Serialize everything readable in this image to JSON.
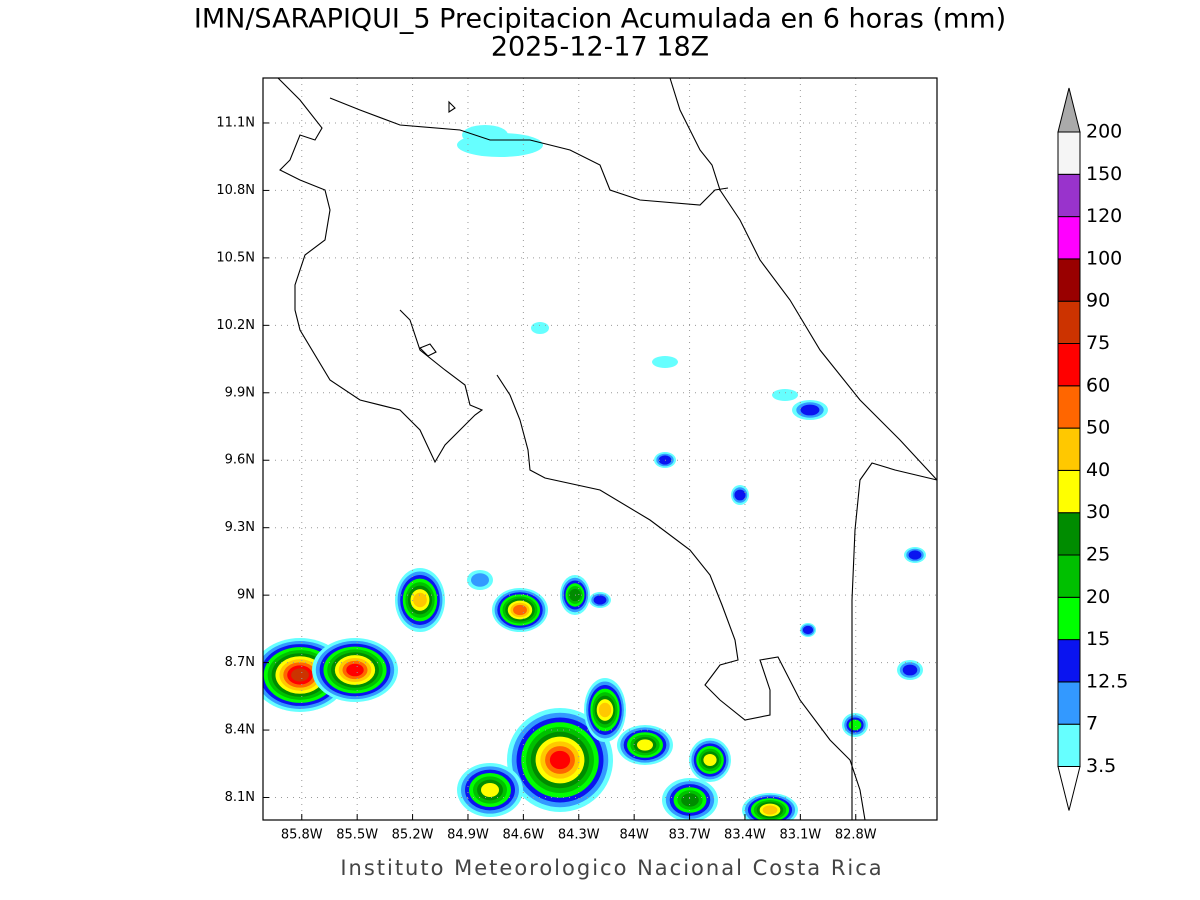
{
  "title": "IMN/SARAPIQUI_5 Precipitacion Acumulada en 6 horas (mm)",
  "subtitle": "2025-12-17 18Z",
  "footer": "Instituto Meteorologico Nacional Costa Rica",
  "map": {
    "xlim": [
      -86.01,
      -82.36
    ],
    "ylim": [
      8.0,
      11.3
    ],
    "grid": true,
    "xticks": [
      {
        "value": -85.8,
        "label": "85.8W"
      },
      {
        "value": -85.5,
        "label": "85.5W"
      },
      {
        "value": -85.2,
        "label": "85.2W"
      },
      {
        "value": -84.9,
        "label": "84.9W"
      },
      {
        "value": -84.6,
        "label": "84.6W"
      },
      {
        "value": -84.3,
        "label": "84.3W"
      },
      {
        "value": -84.0,
        "label": "84W"
      },
      {
        "value": -83.7,
        "label": "83.7W"
      },
      {
        "value": -83.4,
        "label": "83.4W"
      },
      {
        "value": -83.1,
        "label": "83.1W"
      },
      {
        "value": -82.8,
        "label": "82.8W"
      }
    ],
    "yticks": [
      {
        "value": 8.1,
        "label": "8.1N"
      },
      {
        "value": 8.4,
        "label": "8.4N"
      },
      {
        "value": 8.7,
        "label": "8.7N"
      },
      {
        "value": 9.0,
        "label": "9N"
      },
      {
        "value": 9.3,
        "label": "9.3N"
      },
      {
        "value": 9.6,
        "label": "9.6N"
      },
      {
        "value": 9.9,
        "label": "9.9N"
      },
      {
        "value": 10.2,
        "label": "10.2N"
      },
      {
        "value": 10.5,
        "label": "10.5N"
      },
      {
        "value": 10.8,
        "label": "10.8N"
      },
      {
        "value": 11.1,
        "label": "11.1N"
      }
    ]
  },
  "colorbar": {
    "levels": [
      3.5,
      7,
      12.5,
      15,
      20,
      25,
      30,
      40,
      50,
      60,
      75,
      90,
      100,
      120,
      150,
      200
    ],
    "colors": [
      "#66ffff",
      "#3399ff",
      "#0a14f0",
      "#00ff00",
      "#00c000",
      "#008c00",
      "#ffff00",
      "#ffc800",
      "#ff6600",
      "#ff0000",
      "#cc3300",
      "#990000",
      "#ff00ff",
      "#9933cc",
      "#f5f5f5"
    ],
    "over_color": "#aaaaaa",
    "under_color": "#ffffff"
  }
}
